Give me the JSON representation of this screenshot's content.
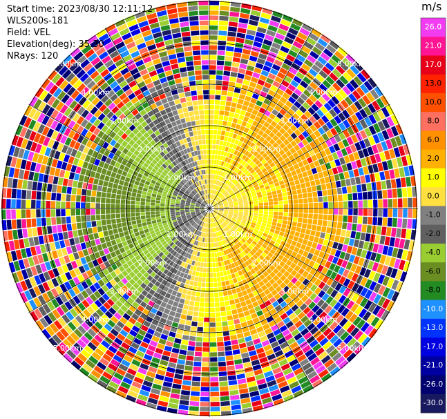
{
  "info": {
    "start_time": "Start time: 2023/08/30 12:11:12",
    "device": "WLS200s-181",
    "field": "Field: VEL",
    "elevation": "Elevation(deg): 35.30",
    "nrays": "NRays: 120"
  },
  "chart_data": {
    "type": "heatmap",
    "subtype": "polar-ppi",
    "field": "VEL",
    "rays": 120,
    "range_rings_km": [
      1.0,
      2.0,
      3.0,
      4.0,
      5.0
    ],
    "range_ring_labels": [
      "1.00km",
      "2.00km",
      "3.00km",
      "4.00km",
      "5.00km"
    ],
    "max_range_km": 5.0,
    "colorbar": {
      "units": "m/s",
      "tick_labels": [
        "26.0",
        "21.0",
        "17.0",
        "13.0",
        "10.0",
        "8.0",
        "6.0",
        "2.0",
        "1.0",
        "0.0",
        "-1.0",
        "-2.0",
        "-4.0",
        "-6.0",
        "-8.0",
        "-10.0",
        "-13.0",
        "-17.0",
        "-21.0",
        "-26.0",
        "-30.0"
      ],
      "colors": [
        "#f23cf2",
        "#ff1493",
        "#e8001a",
        "#ff2200",
        "#ff5000",
        "#ff7060",
        "#ff9000",
        "#ffb000",
        "#ffff00",
        "#ffe040",
        "#808080",
        "#606060",
        "#9acd32",
        "#6b8e23",
        "#228b22",
        "#1e90ff",
        "#0033ff",
        "#0000e0",
        "#0000a0",
        "#000070",
        "#191960"
      ]
    }
  }
}
